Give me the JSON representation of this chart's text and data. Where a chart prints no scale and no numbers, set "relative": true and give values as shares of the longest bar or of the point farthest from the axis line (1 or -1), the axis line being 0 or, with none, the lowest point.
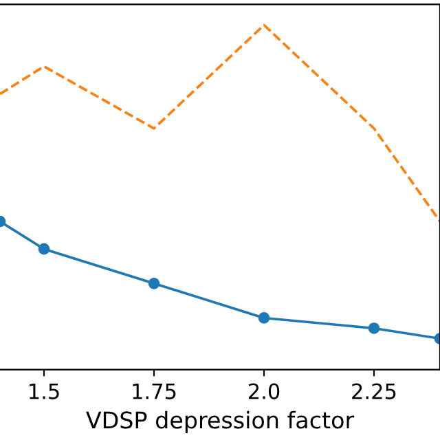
{
  "chart_data": {
    "type": "line",
    "relative": true,
    "xlabel": "VDSP depression factor",
    "xlim": [
      1.4,
      2.4
    ],
    "xticks": [
      1.5,
      1.75,
      {
        "value": 2.0,
        "label": "2.0"
      },
      2.25
    ],
    "series": [
      {
        "color": "#1f77b4",
        "marker": "circle",
        "line_style": "solid",
        "x": [
          1.4,
          1.5,
          1.75,
          2.0,
          2.25,
          2.4
        ],
        "values": [
          0.43,
          0.35,
          0.25,
          0.15,
          0.12,
          0.09
        ]
      },
      {
        "color": "#ff7f0e",
        "marker": "none",
        "line_style": "dashed",
        "x": [
          1.4,
          1.5,
          1.75,
          2.0,
          2.25,
          2.4
        ],
        "values": [
          0.8,
          0.88,
          0.7,
          1.0,
          0.7,
          0.43
        ]
      }
    ],
    "grid": false
  }
}
